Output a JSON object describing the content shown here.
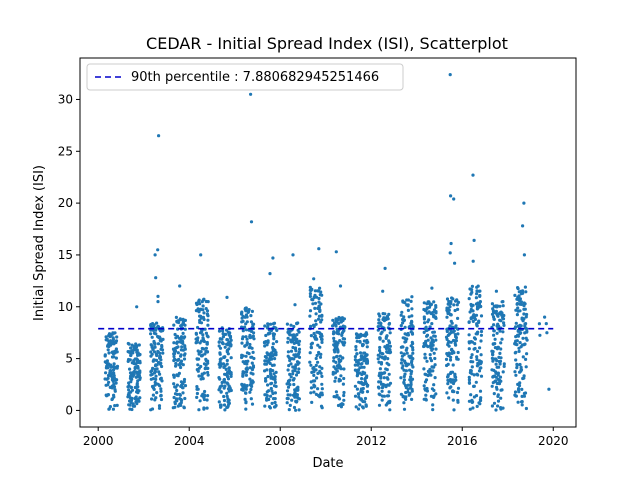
{
  "chart_data": {
    "type": "scatter",
    "title": "CEDAR - Initial Spread Index (ISI), Scatterplot",
    "xlabel": "Date",
    "ylabel": "Initial Spread Index (ISI)",
    "xlim": [
      1999.2,
      2021.0
    ],
    "ylim": [
      -1.6,
      34.0
    ],
    "x_ticks": [
      2000,
      2004,
      2008,
      2012,
      2016,
      2020
    ],
    "y_ticks": [
      0,
      5,
      10,
      15,
      20,
      25,
      30
    ],
    "grid": false,
    "legend_position": "top-left",
    "reference_line": {
      "label": "90th percentile : 7.880682945251466",
      "value": 7.880682945251466,
      "x_range": [
        2000,
        2020
      ],
      "style": "dashed",
      "color": "#0000cc"
    },
    "series": [
      {
        "color": "#1f77b4",
        "seasons": [
          {
            "year": 2000,
            "max": 7.5,
            "outliers": []
          },
          {
            "year": 2001,
            "max": 6.5,
            "outliers": [
              10.0
            ]
          },
          {
            "year": 2002,
            "max": 8.5,
            "outliers": [
              26.5,
              15.5,
              15.0,
              12.8,
              11.0,
              10.5
            ]
          },
          {
            "year": 2003,
            "max": 9.0,
            "outliers": [
              12.0
            ]
          },
          {
            "year": 2004,
            "max": 11.0,
            "outliers": [
              15.0,
              10.5
            ]
          },
          {
            "year": 2005,
            "max": 8.0,
            "outliers": [
              10.9
            ]
          },
          {
            "year": 2006,
            "max": 10.0,
            "outliers": [
              30.5,
              18.2
            ]
          },
          {
            "year": 2007,
            "max": 8.5,
            "outliers": [
              14.7,
              13.2
            ]
          },
          {
            "year": 2008,
            "max": 8.5,
            "outliers": [
              15.0,
              10.2
            ]
          },
          {
            "year": 2009,
            "max": 12.0,
            "outliers": [
              15.6,
              12.7
            ]
          },
          {
            "year": 2010,
            "max": 9.0,
            "outliers": [
              15.3,
              12.0
            ]
          },
          {
            "year": 2011,
            "max": 7.5,
            "outliers": []
          },
          {
            "year": 2012,
            "max": 9.5,
            "outliers": [
              13.7,
              11.5
            ]
          },
          {
            "year": 2013,
            "max": 11.0,
            "outliers": []
          },
          {
            "year": 2014,
            "max": 10.5,
            "outliers": [
              11.8
            ]
          },
          {
            "year": 2015,
            "max": 11.0,
            "outliers": [
              32.4,
              20.7,
              20.4,
              16.1,
              15.2,
              14.2
            ]
          },
          {
            "year": 2016,
            "max": 12.0,
            "outliers": [
              22.7,
              16.4,
              14.4
            ]
          },
          {
            "year": 2017,
            "max": 10.5,
            "outliers": [
              11.5
            ]
          },
          {
            "year": 2018,
            "max": 12.0,
            "outliers": [
              20.0,
              17.8,
              15.0
            ]
          },
          {
            "year": 2019,
            "max": 10.3,
            "outliers": [
              9.0,
              7.5
            ]
          }
        ]
      }
    ]
  }
}
